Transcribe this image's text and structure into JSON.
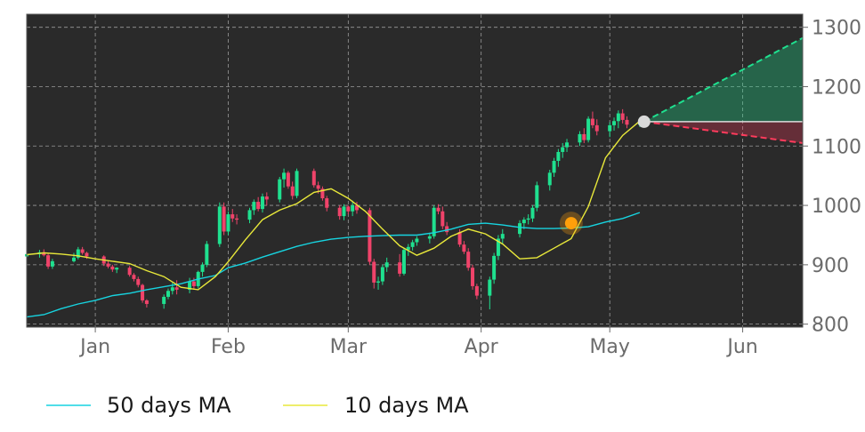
{
  "chart_data": {
    "type": "candlestick",
    "x_axis": {
      "ticks": [
        {
          "label": "Jan",
          "date": "2023-01-01"
        },
        {
          "label": "Feb",
          "date": "2023-02-01"
        },
        {
          "label": "Mar",
          "date": "2023-03-01"
        },
        {
          "label": "Apr",
          "date": "2023-04-01"
        },
        {
          "label": "May",
          "date": "2023-05-01"
        },
        {
          "label": "Jun",
          "date": "2023-06-01"
        }
      ],
      "range": [
        "2022-12-16",
        "2023-06-15"
      ]
    },
    "y_axis": {
      "ticks": [
        800,
        900,
        1000,
        1100,
        1200,
        1300
      ],
      "range": [
        795,
        1322
      ],
      "position": "right"
    },
    "grid": true,
    "series": [
      {
        "name": "50 days MA",
        "kind": "line",
        "color": "#17d4e0",
        "points": [
          [
            "2022-12-16",
            812
          ],
          [
            "2022-12-20",
            816
          ],
          [
            "2022-12-24",
            826
          ],
          [
            "2022-12-28",
            834
          ],
          [
            "2023-01-01",
            840
          ],
          [
            "2023-01-05",
            848
          ],
          [
            "2023-01-09",
            852
          ],
          [
            "2023-01-13",
            858
          ],
          [
            "2023-01-17",
            863
          ],
          [
            "2023-01-21",
            868
          ],
          [
            "2023-01-25",
            876
          ],
          [
            "2023-01-29",
            882
          ],
          [
            "2023-02-01",
            895
          ],
          [
            "2023-02-05",
            903
          ],
          [
            "2023-02-09",
            913
          ],
          [
            "2023-02-13",
            922
          ],
          [
            "2023-02-17",
            931
          ],
          [
            "2023-02-21",
            938
          ],
          [
            "2023-02-25",
            943
          ],
          [
            "2023-03-01",
            946
          ],
          [
            "2023-03-05",
            948
          ],
          [
            "2023-03-09",
            949
          ],
          [
            "2023-03-13",
            950
          ],
          [
            "2023-03-17",
            950
          ],
          [
            "2023-03-21",
            954
          ],
          [
            "2023-03-25",
            960
          ],
          [
            "2023-03-29",
            968
          ],
          [
            "2023-04-02",
            970
          ],
          [
            "2023-04-06",
            967
          ],
          [
            "2023-04-10",
            963
          ],
          [
            "2023-04-14",
            961
          ],
          [
            "2023-04-18",
            961
          ],
          [
            "2023-04-22",
            962
          ],
          [
            "2023-04-26",
            964
          ],
          [
            "2023-04-30",
            972
          ],
          [
            "2023-05-04",
            978
          ],
          [
            "2023-05-08",
            988
          ]
        ]
      },
      {
        "name": "10 days MA",
        "kind": "line",
        "color": "#e8e83a",
        "points": [
          [
            "2022-12-16",
            917
          ],
          [
            "2022-12-20",
            920
          ],
          [
            "2022-12-24",
            918
          ],
          [
            "2022-12-28",
            915
          ],
          [
            "2023-01-01",
            910
          ],
          [
            "2023-01-05",
            906
          ],
          [
            "2023-01-09",
            902
          ],
          [
            "2023-01-13",
            890
          ],
          [
            "2023-01-17",
            880
          ],
          [
            "2023-01-21",
            862
          ],
          [
            "2023-01-25",
            858
          ],
          [
            "2023-01-29",
            880
          ],
          [
            "2023-02-01",
            905
          ],
          [
            "2023-02-05",
            942
          ],
          [
            "2023-02-09",
            976
          ],
          [
            "2023-02-13",
            992
          ],
          [
            "2023-02-17",
            1003
          ],
          [
            "2023-02-21",
            1022
          ],
          [
            "2023-02-25",
            1028
          ],
          [
            "2023-03-01",
            1012
          ],
          [
            "2023-03-05",
            990
          ],
          [
            "2023-03-09",
            960
          ],
          [
            "2023-03-13",
            932
          ],
          [
            "2023-03-17",
            916
          ],
          [
            "2023-03-21",
            928
          ],
          [
            "2023-03-25",
            948
          ],
          [
            "2023-03-29",
            960
          ],
          [
            "2023-04-02",
            952
          ],
          [
            "2023-04-06",
            935
          ],
          [
            "2023-04-10",
            910
          ],
          [
            "2023-04-14",
            912
          ],
          [
            "2023-04-18",
            928
          ],
          [
            "2023-04-22",
            944
          ],
          [
            "2023-04-26",
            998
          ],
          [
            "2023-04-30",
            1080
          ],
          [
            "2023-05-04",
            1118
          ],
          [
            "2023-05-08",
            1142
          ]
        ]
      }
    ],
    "candles": [
      [
        "2022-12-16",
        914,
        922,
        910,
        918
      ],
      [
        "2022-12-19",
        918,
        925,
        912,
        921
      ],
      [
        "2022-12-20",
        921,
        926,
        914,
        916
      ],
      [
        "2022-12-21",
        916,
        920,
        893,
        897
      ],
      [
        "2022-12-22",
        897,
        910,
        893,
        906
      ],
      [
        "2022-12-27",
        906,
        920,
        904,
        912
      ],
      [
        "2022-12-28",
        912,
        930,
        909,
        926
      ],
      [
        "2022-12-29",
        926,
        930,
        917,
        920
      ],
      [
        "2022-12-30",
        920,
        922,
        910,
        914
      ],
      [
        "2023-01-03",
        914,
        916,
        898,
        902
      ],
      [
        "2023-01-04",
        902,
        906,
        894,
        897
      ],
      [
        "2023-01-05",
        897,
        900,
        888,
        892
      ],
      [
        "2023-01-06",
        892,
        896,
        886,
        895
      ],
      [
        "2023-01-09",
        895,
        898,
        880,
        883
      ],
      [
        "2023-01-10",
        883,
        886,
        872,
        876
      ],
      [
        "2023-01-11",
        876,
        880,
        862,
        866
      ],
      [
        "2023-01-12",
        866,
        868,
        836,
        840
      ],
      [
        "2023-01-13",
        840,
        842,
        828,
        834
      ],
      [
        "2023-01-17",
        834,
        850,
        826,
        846
      ],
      [
        "2023-01-18",
        846,
        860,
        842,
        856
      ],
      [
        "2023-01-19",
        856,
        870,
        850,
        862
      ],
      [
        "2023-01-20",
        862,
        874,
        850,
        858
      ],
      [
        "2023-01-23",
        858,
        878,
        852,
        872
      ],
      [
        "2023-01-24",
        872,
        878,
        858,
        864
      ],
      [
        "2023-01-25",
        864,
        890,
        860,
        888
      ],
      [
        "2023-01-26",
        888,
        904,
        880,
        900
      ],
      [
        "2023-01-27",
        900,
        940,
        896,
        935
      ],
      [
        "2023-01-30",
        935,
        1005,
        930,
        998
      ],
      [
        "2023-01-31",
        998,
        1005,
        950,
        956
      ],
      [
        "2023-02-01",
        956,
        990,
        950,
        985
      ],
      [
        "2023-02-02",
        985,
        994,
        972,
        978
      ],
      [
        "2023-02-03",
        978,
        985,
        968,
        976
      ],
      [
        "2023-02-06",
        976,
        996,
        970,
        992
      ],
      [
        "2023-02-07",
        992,
        1010,
        984,
        1006
      ],
      [
        "2023-02-08",
        1006,
        1014,
        990,
        994
      ],
      [
        "2023-02-09",
        994,
        1020,
        988,
        1015
      ],
      [
        "2023-02-10",
        1015,
        1022,
        1000,
        1010
      ],
      [
        "2023-02-13",
        1010,
        1048,
        1005,
        1044
      ],
      [
        "2023-02-14",
        1044,
        1062,
        1030,
        1055
      ],
      [
        "2023-02-15",
        1055,
        1058,
        1028,
        1032
      ],
      [
        "2023-02-16",
        1032,
        1040,
        1010,
        1016
      ],
      [
        "2023-02-17",
        1016,
        1062,
        1012,
        1058
      ],
      [
        "2023-02-21",
        1058,
        1062,
        1030,
        1034
      ],
      [
        "2023-02-22",
        1034,
        1040,
        1020,
        1028
      ],
      [
        "2023-02-23",
        1028,
        1032,
        1008,
        1012
      ],
      [
        "2023-02-24",
        1012,
        1016,
        990,
        996
      ],
      [
        "2023-02-27",
        996,
        1000,
        976,
        982
      ],
      [
        "2023-02-28",
        982,
        1002,
        975,
        998
      ],
      [
        "2023-03-01",
        998,
        1000,
        985,
        990
      ],
      [
        "2023-03-02",
        990,
        1008,
        982,
        1000
      ],
      [
        "2023-03-03",
        1000,
        1006,
        986,
        992
      ],
      [
        "2023-03-06",
        992,
        996,
        900,
        905
      ],
      [
        "2023-03-07",
        905,
        910,
        860,
        870
      ],
      [
        "2023-03-08",
        870,
        880,
        858,
        872
      ],
      [
        "2023-03-09",
        872,
        900,
        866,
        896
      ],
      [
        "2023-03-10",
        896,
        912,
        888,
        904
      ],
      [
        "2023-03-13",
        904,
        918,
        880,
        885
      ],
      [
        "2023-03-14",
        885,
        928,
        882,
        925
      ],
      [
        "2023-03-15",
        925,
        935,
        915,
        930
      ],
      [
        "2023-03-16",
        930,
        942,
        924,
        938
      ],
      [
        "2023-03-17",
        938,
        948,
        932,
        944
      ],
      [
        "2023-03-20",
        944,
        954,
        936,
        948
      ],
      [
        "2023-03-21",
        948,
        1000,
        944,
        996
      ],
      [
        "2023-03-22",
        996,
        1002,
        985,
        990
      ],
      [
        "2023-03-23",
        990,
        998,
        960,
        965
      ],
      [
        "2023-03-24",
        965,
        972,
        950,
        955
      ],
      [
        "2023-03-27",
        955,
        960,
        930,
        934
      ],
      [
        "2023-03-28",
        934,
        940,
        918,
        922
      ],
      [
        "2023-03-29",
        922,
        928,
        890,
        895
      ],
      [
        "2023-03-30",
        895,
        900,
        858,
        864
      ],
      [
        "2023-03-31",
        864,
        868,
        842,
        848
      ],
      [
        "2023-04-03",
        848,
        880,
        825,
        875
      ],
      [
        "2023-04-04",
        875,
        920,
        868,
        915
      ],
      [
        "2023-04-05",
        915,
        950,
        908,
        944
      ],
      [
        "2023-04-06",
        944,
        960,
        935,
        952
      ],
      [
        "2023-04-10",
        952,
        975,
        946,
        970
      ],
      [
        "2023-04-11",
        970,
        980,
        960,
        976
      ],
      [
        "2023-04-12",
        976,
        985,
        968,
        978
      ],
      [
        "2023-04-13",
        978,
        1000,
        972,
        996
      ],
      [
        "2023-04-14",
        996,
        1040,
        990,
        1034
      ],
      [
        "2023-04-17",
        1034,
        1060,
        1025,
        1055
      ],
      [
        "2023-04-18",
        1055,
        1080,
        1048,
        1075
      ],
      [
        "2023-04-19",
        1075,
        1095,
        1065,
        1090
      ],
      [
        "2023-04-20",
        1090,
        1105,
        1080,
        1098
      ],
      [
        "2023-04-21",
        1098,
        1112,
        1090,
        1106
      ],
      [
        "2023-04-24",
        1106,
        1125,
        1100,
        1120
      ],
      [
        "2023-04-25",
        1120,
        1130,
        1105,
        1110
      ],
      [
        "2023-04-26",
        1110,
        1150,
        1106,
        1146
      ],
      [
        "2023-04-27",
        1146,
        1158,
        1130,
        1135
      ],
      [
        "2023-04-28",
        1135,
        1145,
        1118,
        1125
      ],
      [
        "2023-05-01",
        1125,
        1140,
        1115,
        1135
      ],
      [
        "2023-05-02",
        1135,
        1148,
        1126,
        1142
      ],
      [
        "2023-05-03",
        1142,
        1160,
        1130,
        1155
      ],
      [
        "2023-05-04",
        1155,
        1162,
        1138,
        1144
      ],
      [
        "2023-05-05",
        1144,
        1150,
        1130,
        1136
      ],
      [
        "2023-05-08",
        1136,
        1148,
        1132,
        1140
      ]
    ],
    "markers": [
      {
        "date": "2023-04-22",
        "value": 970,
        "color": "#ff9f0a"
      },
      {
        "date": "2023-05-09",
        "value": 1141,
        "color": "#d9d9d9"
      }
    ],
    "projection": {
      "start_date": "2023-05-09",
      "start_value": 1141,
      "end_date": "2023-06-15",
      "upper_end": 1282,
      "lower_end": 1105,
      "upper_color": "#1fe08f",
      "lower_color": "#ff3b5c"
    },
    "legend": {
      "placement": "bottom-left",
      "entries": [
        {
          "label": "50 days MA",
          "color": "#17d4e0"
        },
        {
          "label": "10 days MA",
          "color": "#e8e83a"
        }
      ]
    },
    "colors": {
      "plot_background": "#2a2a2a",
      "up_candle": "#1fe08f",
      "down_candle": "#f0436a",
      "grid": "#9a9a9a"
    }
  }
}
